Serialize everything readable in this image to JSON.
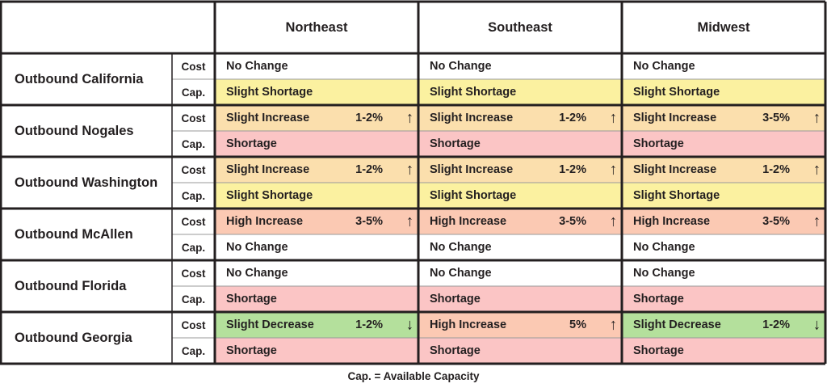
{
  "chart_data": {
    "type": "table",
    "columns": [
      "Northeast",
      "Southeast",
      "Midwest"
    ],
    "row_type_labels": {
      "cost": "Cost",
      "cap": "Cap."
    },
    "rows": [
      {
        "lane": "Outbound California",
        "cost": [
          {
            "label": "No Change",
            "range": "",
            "direction": ""
          },
          {
            "label": "No Change",
            "range": "",
            "direction": ""
          },
          {
            "label": "No Change",
            "range": "",
            "direction": ""
          }
        ],
        "cap": [
          "Slight Shortage",
          "Slight Shortage",
          "Slight Shortage"
        ]
      },
      {
        "lane": "Outbound Nogales",
        "cost": [
          {
            "label": "Slight Increase",
            "range": "1-2%",
            "direction": "up"
          },
          {
            "label": "Slight Increase",
            "range": "1-2%",
            "direction": "up"
          },
          {
            "label": "Slight Increase",
            "range": "3-5%",
            "direction": "up"
          }
        ],
        "cap": [
          "Shortage",
          "Shortage",
          "Shortage"
        ]
      },
      {
        "lane": "Outbound Washington",
        "cost": [
          {
            "label": "Slight Increase",
            "range": "1-2%",
            "direction": "up"
          },
          {
            "label": "Slight Increase",
            "range": "1-2%",
            "direction": "up"
          },
          {
            "label": "Slight Increase",
            "range": "1-2%",
            "direction": "up"
          }
        ],
        "cap": [
          "Slight Shortage",
          "Slight Shortage",
          "Slight Shortage"
        ]
      },
      {
        "lane": "Outbound McAllen",
        "cost": [
          {
            "label": "High Increase",
            "range": "3-5%",
            "direction": "up"
          },
          {
            "label": "High Increase",
            "range": "3-5%",
            "direction": "up"
          },
          {
            "label": "High Increase",
            "range": "3-5%",
            "direction": "up"
          }
        ],
        "cap": [
          "No Change",
          "No Change",
          "No Change"
        ]
      },
      {
        "lane": "Outbound Florida",
        "cost": [
          {
            "label": "No Change",
            "range": "",
            "direction": ""
          },
          {
            "label": "No Change",
            "range": "",
            "direction": ""
          },
          {
            "label": "No Change",
            "range": "",
            "direction": ""
          }
        ],
        "cap": [
          "Shortage",
          "Shortage",
          "Shortage"
        ]
      },
      {
        "lane": "Outbound Georgia",
        "cost": [
          {
            "label": "Slight Decrease",
            "range": "1-2%",
            "direction": "down"
          },
          {
            "label": "High Increase",
            "range": "5%",
            "direction": "up"
          },
          {
            "label": "Slight Decrease",
            "range": "1-2%",
            "direction": "down"
          }
        ],
        "cap": [
          "Shortage",
          "Shortage",
          "Shortage"
        ]
      }
    ],
    "footnote": "Cap. = Available Capacity"
  },
  "status_colors": {
    "No Change": "#ffffff",
    "Slight Shortage": "#fbf1a0",
    "Shortage": "#fbc5c5",
    "Slight Increase": "#fbdfad",
    "High Increase": "#fbc9b3",
    "Slight Decrease": "#b4e09c"
  },
  "arrow_glyphs": {
    "up": "↑",
    "down": "↓"
  }
}
